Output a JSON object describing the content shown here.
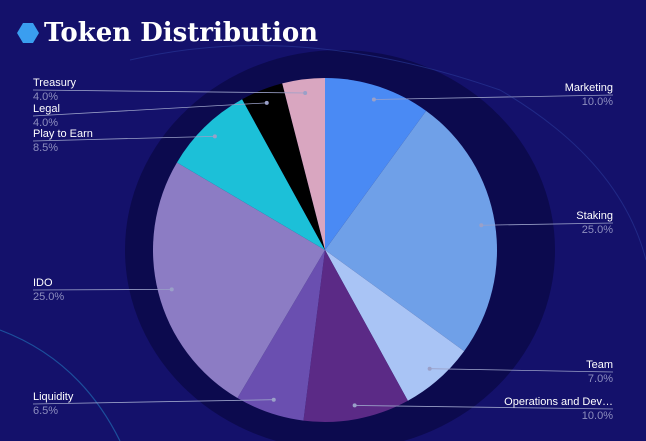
{
  "chart_data": {
    "type": "pie",
    "title": "Token Distribution",
    "categories": [
      "Marketing",
      "Staking",
      "Team",
      "Operations and Dev…",
      "Liquidity",
      "IDO",
      "Play to Earn",
      "Legal",
      "Treasury"
    ],
    "values": [
      10,
      25,
      7,
      10,
      6.5,
      25,
      8.5,
      4,
      4
    ],
    "value_labels": [
      "10.0%",
      "25.0%",
      "7.0%",
      "10.0%",
      "6.5%",
      "25.0%",
      "8.5%",
      "4.0%",
      "4.0%"
    ],
    "colors": [
      "#4a8af4",
      "#6fa0e8",
      "#a9c4f5",
      "#5b2a86",
      "#6a4fb0",
      "#8c7cc4",
      "#1cc0d8",
      "#000000",
      "#d9a6c0"
    ]
  }
}
